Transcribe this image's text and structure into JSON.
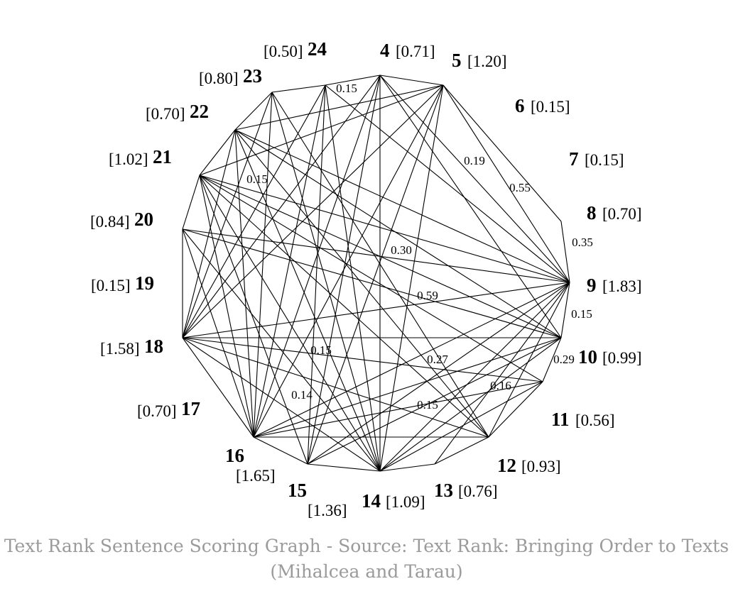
{
  "graph": {
    "nodes": [
      {
        "id": "4",
        "score": "[0.71]"
      },
      {
        "id": "5",
        "score": "[1.20]"
      },
      {
        "id": "6",
        "score": "[0.15]"
      },
      {
        "id": "7",
        "score": "[0.15]"
      },
      {
        "id": "8",
        "score": "[0.70]"
      },
      {
        "id": "9",
        "score": "[1.83]"
      },
      {
        "id": "10",
        "score": "[0.99]"
      },
      {
        "id": "11",
        "score": "[0.56]"
      },
      {
        "id": "12",
        "score": "[0.93]"
      },
      {
        "id": "13",
        "score": "[0.76]"
      },
      {
        "id": "14",
        "score": "[1.09]"
      },
      {
        "id": "15",
        "score": "[1.36]"
      },
      {
        "id": "16",
        "score": "[1.65]"
      },
      {
        "id": "17",
        "score": "[0.70]"
      },
      {
        "id": "18",
        "score": "[1.58]"
      },
      {
        "id": "19",
        "score": "[0.15]"
      },
      {
        "id": "20",
        "score": "[0.84]"
      },
      {
        "id": "21",
        "score": "[1.02]"
      },
      {
        "id": "22",
        "score": "[0.70]"
      },
      {
        "id": "23",
        "score": "[0.80]"
      },
      {
        "id": "24",
        "score": "[0.50]"
      }
    ],
    "edges": [
      [
        "5",
        "8"
      ],
      [
        "8",
        "9"
      ],
      [
        "9",
        "10"
      ],
      [
        "10",
        "11"
      ],
      [
        "11",
        "12"
      ],
      [
        "12",
        "13"
      ],
      [
        "13",
        "14"
      ],
      [
        "14",
        "15"
      ],
      [
        "15",
        "16"
      ],
      [
        "16",
        "18"
      ],
      [
        "18",
        "20"
      ],
      [
        "20",
        "21"
      ],
      [
        "21",
        "22"
      ],
      [
        "22",
        "23"
      ],
      [
        "23",
        "24"
      ],
      [
        "24",
        "4"
      ],
      [
        "4",
        "5"
      ],
      [
        "4",
        "14"
      ],
      [
        "4",
        "16"
      ],
      [
        "4",
        "15"
      ],
      [
        "4",
        "18"
      ],
      [
        "4",
        "10"
      ],
      [
        "4",
        "9"
      ],
      [
        "5",
        "14"
      ],
      [
        "5",
        "15"
      ],
      [
        "5",
        "16"
      ],
      [
        "5",
        "18"
      ],
      [
        "5",
        "21"
      ],
      [
        "5",
        "22"
      ],
      [
        "5",
        "9"
      ],
      [
        "24",
        "14"
      ],
      [
        "24",
        "15"
      ],
      [
        "24",
        "16"
      ],
      [
        "24",
        "18"
      ],
      [
        "24",
        "9"
      ],
      [
        "23",
        "14"
      ],
      [
        "23",
        "12"
      ],
      [
        "23",
        "16"
      ],
      [
        "23",
        "18"
      ],
      [
        "22",
        "9"
      ],
      [
        "22",
        "10"
      ],
      [
        "22",
        "12"
      ],
      [
        "22",
        "14"
      ],
      [
        "22",
        "16"
      ],
      [
        "22",
        "18"
      ],
      [
        "21",
        "9"
      ],
      [
        "21",
        "10"
      ],
      [
        "21",
        "11"
      ],
      [
        "21",
        "12"
      ],
      [
        "21",
        "14"
      ],
      [
        "21",
        "15"
      ],
      [
        "21",
        "16"
      ],
      [
        "20",
        "9"
      ],
      [
        "20",
        "10"
      ],
      [
        "20",
        "14"
      ],
      [
        "20",
        "16"
      ],
      [
        "18",
        "9"
      ],
      [
        "18",
        "10"
      ],
      [
        "18",
        "11"
      ],
      [
        "18",
        "12"
      ],
      [
        "18",
        "14"
      ],
      [
        "16",
        "9"
      ],
      [
        "16",
        "10"
      ],
      [
        "16",
        "11"
      ],
      [
        "16",
        "12"
      ],
      [
        "15",
        "9"
      ],
      [
        "15",
        "10"
      ],
      [
        "14",
        "9"
      ],
      [
        "14",
        "10"
      ],
      [
        "14",
        "11"
      ],
      [
        "13",
        "9"
      ],
      [
        "12",
        "9"
      ]
    ],
    "weights": [
      "0.15",
      "0.19",
      "0.55",
      "0.35",
      "0.15",
      "0.15",
      "0.30",
      "0.59",
      "0.15",
      "0.27",
      "0.29",
      "0.16",
      "0.14",
      "0.15"
    ]
  },
  "caption": {
    "line1": "Text Rank Sentence Scoring Graph - Source: Text Rank: Bringing Order to Texts",
    "line2": "(Mihalcea and Tarau)"
  }
}
